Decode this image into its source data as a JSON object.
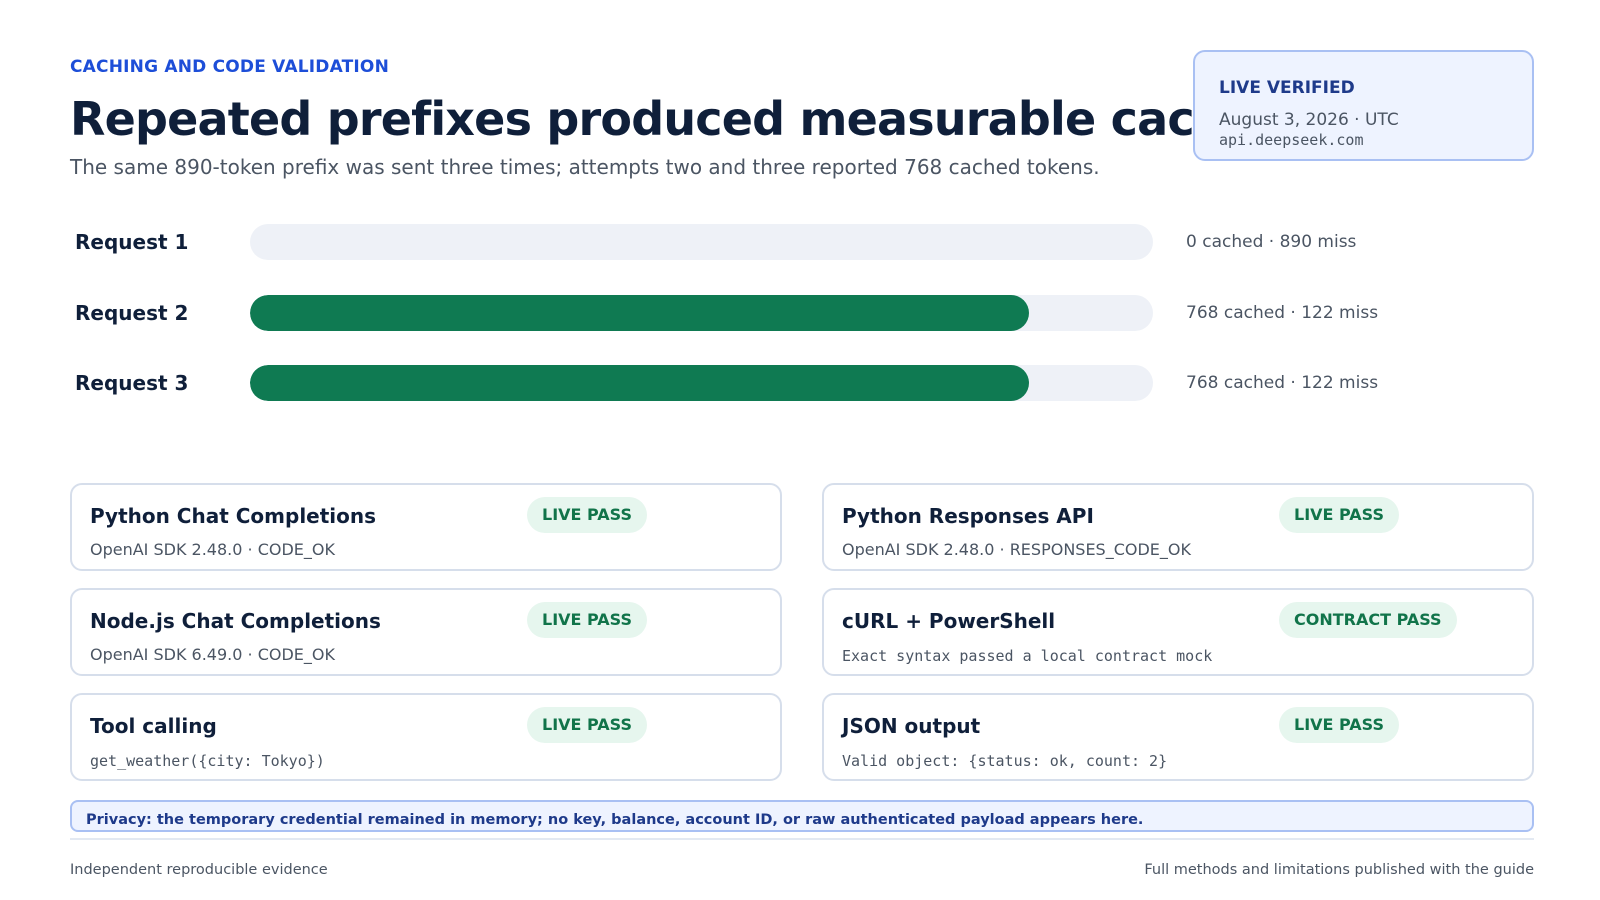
{
  "header": {
    "eyebrow": "CACHING AND CODE VALIDATION",
    "title": "Repeated prefixes produced measurable cache hits",
    "subtitle": "The same 890-token prefix was sent three times; attempts two and three reported 768 cached tokens."
  },
  "verification": {
    "title": "LIVE VERIFIED",
    "date": "August 3, 2026 · UTC",
    "host": "api.deepseek.com"
  },
  "requests": [
    {
      "label": "Request 1",
      "summary": "0 cached · 890 miss",
      "cached": 0,
      "total": 890
    },
    {
      "label": "Request 2",
      "summary": "768 cached · 122 miss",
      "cached": 768,
      "total": 890
    },
    {
      "label": "Request 3",
      "summary": "768 cached · 122 miss",
      "cached": 768,
      "total": 890
    }
  ],
  "checks": [
    {
      "title": "Python Chat Completions",
      "detail": "OpenAI SDK 2.48.0 · CODE_OK",
      "status": "LIVE PASS"
    },
    {
      "title": "Python Responses API",
      "detail": "OpenAI SDK 2.48.0 · RESPONSES_CODE_OK",
      "status": "LIVE PASS"
    },
    {
      "title": "Node.js Chat Completions",
      "detail": "OpenAI SDK 6.49.0 · CODE_OK",
      "status": "LIVE PASS"
    },
    {
      "title": "cURL + PowerShell",
      "detail": "Exact syntax passed a local contract mock",
      "status": "CONTRACT PASS"
    },
    {
      "title": "Tool calling",
      "detail": "get_weather({city: Tokyo})",
      "status": "LIVE PASS"
    },
    {
      "title": "JSON output",
      "detail": "Valid object: {status: ok, count: 2}",
      "status": "LIVE PASS"
    }
  ],
  "privacy_note": "Privacy: the temporary credential remained in memory; no key, balance, account ID, or raw authenticated payload appears here.",
  "footer": {
    "left": "Independent reproducible evidence",
    "right": "Full methods and limitations published with the guide"
  },
  "colors": {
    "accent": "#1d4ed8",
    "cached_bar": "#0f7a52",
    "track": "#eef1f7",
    "pass_badge_bg": "#e6f6ee",
    "pass_badge_text": "#11744a"
  }
}
